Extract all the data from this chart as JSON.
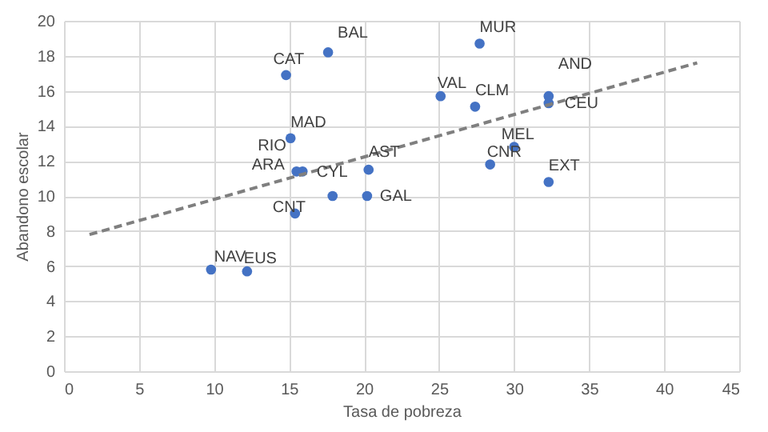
{
  "chart_data": {
    "type": "scatter",
    "xlabel": "Tasa de pobreza",
    "ylabel": "Abandono escolar",
    "xlim": [
      0,
      45
    ],
    "xticks": [
      0,
      5,
      10,
      15,
      20,
      25,
      30,
      35,
      40,
      45
    ],
    "ylim": [
      0,
      20
    ],
    "yticks": [
      0,
      2,
      4,
      6,
      8,
      10,
      12,
      14,
      16,
      18,
      20
    ],
    "grid": true,
    "series": [
      {
        "type": "scatter",
        "marker": "circle",
        "color": "#4472c4",
        "x": [
          14.8,
          17.6,
          15.1,
          15.9,
          15.5,
          17.9,
          15.4,
          20.2,
          20.3,
          9.8,
          12.2,
          27.7,
          25.1,
          27.4,
          32.3,
          32.3,
          30.0,
          28.4,
          32.3
        ],
        "values": [
          16.9,
          18.2,
          13.3,
          11.4,
          11.4,
          10.0,
          9.0,
          10.0,
          11.5,
          5.8,
          5.7,
          18.7,
          15.7,
          15.1,
          15.7,
          15.3,
          12.8,
          11.8,
          10.8
        ]
      },
      {
        "type": "line",
        "color": "#7f7f7f",
        "line_style": "dashed",
        "marker": "none",
        "x": [
          1.7,
          42.2
        ],
        "values": [
          7.8,
          17.6
        ]
      }
    ],
    "annotations": [
      {
        "text": "CAT",
        "x": 14.8,
        "y": 16.9
      },
      {
        "text": "BAL",
        "x": 17.6,
        "y": 18.2
      },
      {
        "text": "MAD",
        "x": 15.1,
        "y": 13.3
      },
      {
        "text": "RIO",
        "x": 15.9,
        "y": 11.4
      },
      {
        "text": "ARA",
        "x": 15.5,
        "y": 11.4
      },
      {
        "text": "CYL",
        "x": 17.9,
        "y": 10.0
      },
      {
        "text": "CNT",
        "x": 15.4,
        "y": 9.0
      },
      {
        "text": "GAL",
        "x": 20.2,
        "y": 10.0
      },
      {
        "text": "AST",
        "x": 20.3,
        "y": 11.5
      },
      {
        "text": "NAV",
        "x": 9.8,
        "y": 5.8
      },
      {
        "text": "EUS",
        "x": 12.2,
        "y": 5.7
      },
      {
        "text": "MUR",
        "x": 27.7,
        "y": 18.7
      },
      {
        "text": "VAL",
        "x": 25.1,
        "y": 15.7
      },
      {
        "text": "CLM",
        "x": 27.4,
        "y": 15.1
      },
      {
        "text": "AND",
        "x": 32.3,
        "y": 15.7
      },
      {
        "text": "CEU",
        "x": 32.3,
        "y": 15.3
      },
      {
        "text": "MEL",
        "x": 30.0,
        "y": 12.8
      },
      {
        "text": "CNR",
        "x": 28.4,
        "y": 11.8
      },
      {
        "text": "EXT",
        "x": 32.3,
        "y": 10.8
      }
    ]
  }
}
